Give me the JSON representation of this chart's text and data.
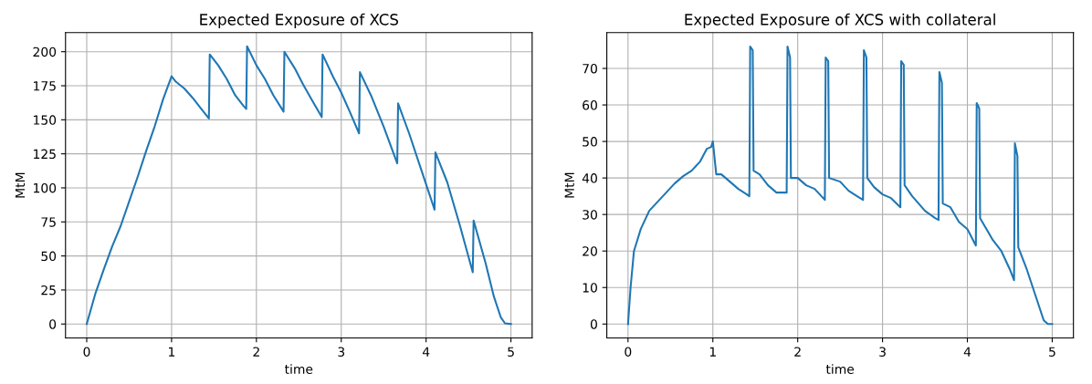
{
  "chart_data": [
    {
      "type": "line",
      "title": "Expected Exposure of XCS",
      "xlabel": "time",
      "ylabel": "MtM",
      "grid": true,
      "xlim": [
        -0.25,
        5.25
      ],
      "xticks": [
        0,
        1,
        2,
        3,
        4,
        5
      ],
      "ylim": [
        -10.2,
        214
      ],
      "yticks": [
        0,
        25,
        50,
        75,
        100,
        125,
        150,
        175,
        200
      ],
      "series": [
        {
          "color": "#1f77b4",
          "x": [
            0,
            0.1,
            0.2,
            0.3,
            0.4,
            0.5,
            0.6,
            0.7,
            0.8,
            0.9,
            1.0,
            1.05,
            1.15,
            1.25,
            1.35,
            1.44,
            1.45,
            1.55,
            1.65,
            1.75,
            1.85,
            1.88,
            1.89,
            2.0,
            2.1,
            2.2,
            2.32,
            2.33,
            2.45,
            2.55,
            2.65,
            2.77,
            2.78,
            2.9,
            3.0,
            3.1,
            3.21,
            3.22,
            3.35,
            3.5,
            3.66,
            3.67,
            3.8,
            3.95,
            4.1,
            4.11,
            4.25,
            4.4,
            4.55,
            4.56,
            4.7,
            4.8,
            4.88,
            4.93,
            5.0
          ],
          "values": [
            0,
            22,
            40,
            57,
            72,
            90,
            108,
            127,
            145,
            165,
            182,
            178,
            173,
            166,
            158,
            151,
            198,
            190,
            180,
            168,
            160,
            158,
            204,
            190,
            180,
            168,
            156,
            200,
            188,
            176,
            165,
            152,
            198,
            182,
            170,
            156,
            140,
            185,
            168,
            145,
            118,
            162,
            140,
            112,
            84,
            126,
            104,
            72,
            38,
            76,
            45,
            20,
            5,
            0.5,
            0
          ]
        }
      ]
    },
    {
      "type": "line",
      "title": "Expected Exposure of XCS with collateral",
      "xlabel": "time",
      "ylabel": "MtM",
      "grid": true,
      "xlim": [
        -0.25,
        5.25
      ],
      "xticks": [
        0,
        1,
        2,
        3,
        4,
        5
      ],
      "ylim": [
        -3.8,
        79.8
      ],
      "yticks": [
        0,
        10,
        20,
        30,
        40,
        50,
        60,
        70
      ],
      "series": [
        {
          "color": "#1f77b4",
          "x": [
            0,
            0.03,
            0.07,
            0.15,
            0.25,
            0.35,
            0.45,
            0.55,
            0.65,
            0.75,
            0.85,
            0.93,
            0.98,
            1.0,
            1.04,
            1.1,
            1.2,
            1.3,
            1.4,
            1.43,
            1.44,
            1.47,
            1.48,
            1.55,
            1.65,
            1.75,
            1.87,
            1.88,
            1.91,
            1.92,
            2.0,
            2.1,
            2.2,
            2.32,
            2.33,
            2.36,
            2.37,
            2.5,
            2.6,
            2.7,
            2.77,
            2.78,
            2.81,
            2.82,
            2.9,
            3.0,
            3.1,
            3.21,
            3.22,
            3.25,
            3.26,
            3.35,
            3.5,
            3.62,
            3.66,
            3.67,
            3.7,
            3.71,
            3.8,
            3.9,
            4.0,
            4.1,
            4.11,
            4.14,
            4.15,
            4.3,
            4.4,
            4.5,
            4.55,
            4.56,
            4.59,
            4.6,
            4.7,
            4.8,
            4.9,
            4.95,
            5.0
          ],
          "values": [
            0,
            10,
            20,
            26,
            31,
            33.5,
            36,
            38.5,
            40.5,
            42,
            44.5,
            48,
            48.5,
            50,
            41,
            41,
            39,
            37,
            35.5,
            35,
            76,
            75,
            42,
            41,
            38,
            36,
            36,
            76,
            73,
            40,
            40,
            38,
            37,
            34,
            73,
            72,
            40,
            39,
            36.5,
            35,
            34,
            75,
            73,
            40,
            37.5,
            35.5,
            34.5,
            32,
            72,
            71,
            38,
            35,
            31,
            29,
            28.5,
            69,
            66,
            33,
            32,
            28,
            26,
            21.5,
            60.5,
            59,
            29,
            23,
            20,
            15,
            12,
            49.5,
            46,
            21,
            15,
            8,
            1,
            0,
            0
          ]
        }
      ]
    }
  ]
}
